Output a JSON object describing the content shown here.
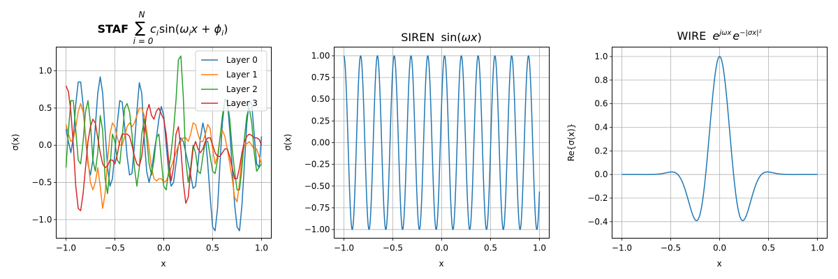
{
  "chart_data": [
    {
      "type": "line",
      "title_prefix": "STAF",
      "title": "Σ_{i=0}^{N} c_i sin(ω_i x + ϕ_i)",
      "title_parts": {
        "sum": "∑",
        "sup": "N",
        "sub": "i = 0",
        "c": "c",
        "i": "i",
        "sin": "sin",
        "open": "(",
        "omega": "ω",
        "x": "x",
        "plus": " + ",
        "phi": "ϕ",
        "close": ")"
      },
      "xlabel": "x",
      "ylabel": "σ(x)",
      "xlim": [
        -1.1,
        1.1
      ],
      "ylim": [
        -1.25,
        1.32
      ],
      "xticks": [
        -1.0,
        -0.5,
        0.0,
        0.5,
        1.0
      ],
      "xtick_labels": [
        "−1.0",
        "−0.5",
        "0.0",
        "0.5",
        "1.0"
      ],
      "yticks": [
        -1.0,
        -0.5,
        0.0,
        0.5,
        1.0
      ],
      "ytick_labels": [
        "−1.0",
        "−0.5",
        "0.0",
        "0.5",
        "1.0"
      ],
      "grid": true,
      "legend_position": "top-right",
      "series": [
        {
          "name": "Layer 0",
          "color": "#1f77b4",
          "x": [
            -1.0,
            -0.975,
            -0.95,
            -0.925,
            -0.9,
            -0.875,
            -0.85,
            -0.825,
            -0.8,
            -0.775,
            -0.75,
            -0.725,
            -0.7,
            -0.675,
            -0.65,
            -0.625,
            -0.6,
            -0.575,
            -0.55,
            -0.525,
            -0.5,
            -0.475,
            -0.45,
            -0.425,
            -0.4,
            -0.375,
            -0.35,
            -0.325,
            -0.3,
            -0.275,
            -0.25,
            -0.225,
            -0.2,
            -0.175,
            -0.15,
            -0.125,
            -0.1,
            -0.075,
            -0.05,
            -0.025,
            0.0,
            0.025,
            0.05,
            0.075,
            0.1,
            0.125,
            0.15,
            0.175,
            0.2,
            0.225,
            0.25,
            0.275,
            0.3,
            0.325,
            0.35,
            0.375,
            0.4,
            0.425,
            0.45,
            0.475,
            0.5,
            0.525,
            0.55,
            0.575,
            0.6,
            0.625,
            0.65,
            0.675,
            0.7,
            0.725,
            0.75,
            0.775,
            0.8,
            0.825,
            0.85,
            0.875,
            0.9,
            0.925,
            0.95,
            0.975,
            1.0
          ],
          "y": [
            0.22,
            0.05,
            -0.1,
            0.1,
            0.55,
            0.85,
            0.85,
            0.55,
            0.1,
            -0.25,
            -0.4,
            -0.2,
            0.25,
            0.7,
            0.92,
            0.7,
            0.2,
            -0.3,
            -0.55,
            -0.45,
            -0.1,
            0.3,
            0.6,
            0.58,
            0.25,
            -0.15,
            -0.4,
            -0.38,
            0.0,
            0.45,
            0.84,
            0.7,
            0.1,
            -0.35,
            -0.5,
            -0.35,
            -0.1,
            0.1,
            0.35,
            0.52,
            0.4,
            0.0,
            -0.35,
            -0.55,
            -0.5,
            -0.25,
            0.0,
            0.1,
            0.05,
            -0.1,
            -0.25,
            -0.4,
            -0.58,
            -0.55,
            -0.25,
            0.1,
            0.3,
            0.15,
            -0.25,
            -0.7,
            -1.1,
            -1.15,
            -0.85,
            -0.25,
            0.3,
            0.62,
            0.6,
            0.2,
            -0.3,
            -0.8,
            -1.1,
            -1.15,
            -0.8,
            -0.25,
            0.3,
            0.6,
            0.55,
            0.15,
            -0.25,
            -0.3,
            0.12
          ]
        },
        {
          "name": "Layer 1",
          "color": "#ff7f0e",
          "x": [
            -1.0,
            -0.975,
            -0.95,
            -0.925,
            -0.9,
            -0.875,
            -0.85,
            -0.825,
            -0.8,
            -0.775,
            -0.75,
            -0.725,
            -0.7,
            -0.675,
            -0.65,
            -0.625,
            -0.6,
            -0.575,
            -0.55,
            -0.525,
            -0.5,
            -0.475,
            -0.45,
            -0.425,
            -0.4,
            -0.375,
            -0.35,
            -0.325,
            -0.3,
            -0.275,
            -0.25,
            -0.225,
            -0.2,
            -0.175,
            -0.15,
            -0.125,
            -0.1,
            -0.075,
            -0.05,
            -0.025,
            0.0,
            0.025,
            0.05,
            0.075,
            0.1,
            0.125,
            0.15,
            0.175,
            0.2,
            0.225,
            0.25,
            0.275,
            0.3,
            0.325,
            0.35,
            0.375,
            0.4,
            0.425,
            0.45,
            0.475,
            0.5,
            0.525,
            0.55,
            0.575,
            0.6,
            0.625,
            0.65,
            0.675,
            0.7,
            0.725,
            0.75,
            0.775,
            0.8,
            0.825,
            0.85,
            0.875,
            0.9,
            0.925,
            0.95,
            0.975,
            1.0
          ],
          "y": [
            0.28,
            0.15,
            0.05,
            0.08,
            0.25,
            0.45,
            0.56,
            0.45,
            0.15,
            -0.2,
            -0.5,
            -0.6,
            -0.5,
            -0.3,
            -0.55,
            -0.85,
            -0.65,
            -0.2,
            0.15,
            0.3,
            0.25,
            0.1,
            0.0,
            0.0,
            0.12,
            0.25,
            0.3,
            0.25,
            0.3,
            0.4,
            0.5,
            0.5,
            0.4,
            0.2,
            -0.05,
            -0.3,
            -0.45,
            -0.48,
            -0.45,
            -0.45,
            -0.5,
            -0.48,
            -0.4,
            -0.3,
            -0.2,
            -0.1,
            0.0,
            0.05,
            0.1,
            0.1,
            0.05,
            0.15,
            0.3,
            0.28,
            0.15,
            0.05,
            0.05,
            0.15,
            0.28,
            0.22,
            -0.05,
            -0.25,
            -0.15,
            0.1,
            0.2,
            0.12,
            -0.05,
            -0.25,
            -0.45,
            -0.7,
            -0.76,
            -0.5,
            -0.15,
            0.0,
            0.02,
            0.05,
            0.0,
            -0.05,
            -0.05,
            -0.15,
            -0.25
          ]
        },
        {
          "name": "Layer 2",
          "color": "#2ca02c",
          "x": [
            -1.0,
            -0.975,
            -0.95,
            -0.925,
            -0.9,
            -0.875,
            -0.85,
            -0.825,
            -0.8,
            -0.775,
            -0.75,
            -0.725,
            -0.7,
            -0.675,
            -0.65,
            -0.625,
            -0.6,
            -0.575,
            -0.55,
            -0.525,
            -0.5,
            -0.475,
            -0.45,
            -0.425,
            -0.4,
            -0.375,
            -0.35,
            -0.325,
            -0.3,
            -0.275,
            -0.25,
            -0.225,
            -0.2,
            -0.175,
            -0.15,
            -0.125,
            -0.1,
            -0.075,
            -0.05,
            -0.025,
            0.0,
            0.025,
            0.05,
            0.075,
            0.1,
            0.125,
            0.15,
            0.175,
            0.2,
            0.225,
            0.25,
            0.275,
            0.3,
            0.325,
            0.35,
            0.375,
            0.4,
            0.425,
            0.45,
            0.475,
            0.5,
            0.525,
            0.55,
            0.575,
            0.6,
            0.625,
            0.65,
            0.675,
            0.7,
            0.725,
            0.75,
            0.775,
            0.8,
            0.825,
            0.85,
            0.875,
            0.9,
            0.925,
            0.95,
            0.975,
            1.0
          ],
          "y": [
            -0.3,
            0.2,
            0.6,
            0.6,
            0.2,
            -0.2,
            -0.25,
            0.05,
            0.45,
            0.6,
            0.3,
            -0.2,
            -0.35,
            -0.1,
            0.4,
            0.2,
            -0.45,
            -0.65,
            -0.3,
            0.15,
            0.05,
            -0.2,
            -0.25,
            0.1,
            0.5,
            0.56,
            0.45,
            0.15,
            -0.3,
            -0.55,
            -0.3,
            0.15,
            0.35,
            0.1,
            -0.25,
            -0.4,
            -0.2,
            0.1,
            0.15,
            -0.2,
            -0.55,
            -0.6,
            -0.35,
            -0.1,
            0.2,
            0.6,
            1.15,
            1.2,
            0.65,
            -0.2,
            -0.5,
            -0.3,
            0.0,
            -0.1,
            -0.35,
            -0.38,
            -0.15,
            0.05,
            0.05,
            -0.15,
            -0.35,
            -0.38,
            -0.2,
            0.1,
            0.4,
            0.6,
            0.58,
            0.35,
            -0.05,
            -0.35,
            -0.6,
            -0.6,
            -0.3,
            0.1,
            0.4,
            0.5,
            0.3,
            -0.1,
            -0.35,
            -0.3,
            -0.25
          ]
        },
        {
          "name": "Layer 3",
          "color": "#d62728",
          "x": [
            -1.0,
            -0.975,
            -0.95,
            -0.925,
            -0.9,
            -0.875,
            -0.85,
            -0.825,
            -0.8,
            -0.775,
            -0.75,
            -0.725,
            -0.7,
            -0.675,
            -0.65,
            -0.625,
            -0.6,
            -0.575,
            -0.55,
            -0.525,
            -0.5,
            -0.475,
            -0.45,
            -0.425,
            -0.4,
            -0.375,
            -0.35,
            -0.325,
            -0.3,
            -0.275,
            -0.25,
            -0.225,
            -0.2,
            -0.175,
            -0.15,
            -0.125,
            -0.1,
            -0.075,
            -0.05,
            -0.025,
            0.0,
            0.025,
            0.05,
            0.075,
            0.1,
            0.125,
            0.15,
            0.175,
            0.2,
            0.225,
            0.25,
            0.275,
            0.3,
            0.325,
            0.35,
            0.375,
            0.4,
            0.425,
            0.45,
            0.475,
            0.5,
            0.525,
            0.55,
            0.575,
            0.6,
            0.625,
            0.65,
            0.675,
            0.7,
            0.725,
            0.75,
            0.775,
            0.8,
            0.825,
            0.85,
            0.875,
            0.9,
            0.925,
            0.95,
            0.975,
            1.0
          ],
          "y": [
            0.8,
            0.72,
            0.45,
            0.0,
            -0.55,
            -0.85,
            -0.88,
            -0.65,
            -0.3,
            0.05,
            0.25,
            0.35,
            0.3,
            0.1,
            -0.1,
            -0.25,
            -0.3,
            -0.28,
            -0.2,
            -0.2,
            -0.25,
            -0.12,
            0.05,
            0.15,
            0.15,
            0.15,
            0.12,
            0.0,
            -0.15,
            -0.25,
            -0.28,
            -0.15,
            0.15,
            0.45,
            0.55,
            0.4,
            0.35,
            0.46,
            0.5,
            0.42,
            0.35,
            0.15,
            -0.2,
            -0.48,
            -0.3,
            0.15,
            0.25,
            -0.05,
            -0.5,
            -0.78,
            -0.7,
            -0.35,
            -0.05,
            0.05,
            -0.05,
            -0.1,
            -0.05,
            0.05,
            0.1,
            0.1,
            0.0,
            -0.1,
            -0.15,
            -0.15,
            -0.1,
            -0.05,
            -0.05,
            -0.15,
            -0.3,
            -0.45,
            -0.45,
            -0.3,
            -0.1,
            0.05,
            0.12,
            0.15,
            0.13,
            0.1,
            0.1,
            0.08,
            0.0
          ]
        }
      ]
    },
    {
      "type": "line",
      "title_prefix": "SIREN",
      "title": "sin(ωx)",
      "title_parts": {
        "sin": "sin(",
        "omega": "ωx",
        "close": ")"
      },
      "xlabel": "x",
      "ylabel": "σ(x)",
      "xlim": [
        -1.1,
        1.1
      ],
      "ylim": [
        -1.1,
        1.1
      ],
      "xticks": [
        -1.0,
        -0.5,
        0.0,
        0.5,
        1.0
      ],
      "xtick_labels": [
        "−1.0",
        "−0.5",
        "0.0",
        "0.5",
        "1.0"
      ],
      "yticks": [
        -1.0,
        -0.75,
        -0.5,
        -0.25,
        0.0,
        0.25,
        0.5,
        0.75,
        1.0
      ],
      "ytick_labels": [
        "−1.00",
        "−0.75",
        "−0.50",
        "−0.25",
        "0.00",
        "0.25",
        "0.50",
        "0.75",
        "1.00"
      ],
      "grid": true,
      "function": "sin(omega*x + phase)",
      "omega": 36.6,
      "phase": 38.2,
      "series": [
        {
          "color": "#1f77b4"
        }
      ]
    },
    {
      "type": "line",
      "title_prefix": "WIRE",
      "title": "e^{jωx} e^{−|σx|²}",
      "title_parts": {
        "e": "e",
        "sup1": "jωx",
        "sup2": "−|σx|²"
      },
      "xlabel": "x",
      "ylabel": "Re{σ(x)}",
      "xlim": [
        -1.1,
        1.1
      ],
      "ylim": [
        -0.54,
        1.08
      ],
      "xticks": [
        -1.0,
        -0.5,
        0.0,
        0.5,
        1.0
      ],
      "xtick_labels": [
        "−1.0",
        "−0.5",
        "0.0",
        "0.5",
        "1.0"
      ],
      "yticks": [
        -0.4,
        -0.2,
        0.0,
        0.2,
        0.4,
        0.6,
        0.8,
        1.0
      ],
      "ytick_labels": [
        "−0.4",
        "−0.2",
        "0.0",
        "0.2",
        "0.4",
        "0.6",
        "0.8",
        "1.0"
      ],
      "grid": true,
      "function": "cos(omega*x)*exp(-(sigma*x)^2)",
      "omega": 11.0,
      "sigma": 3.75,
      "series": [
        {
          "color": "#1f77b4"
        }
      ]
    }
  ]
}
